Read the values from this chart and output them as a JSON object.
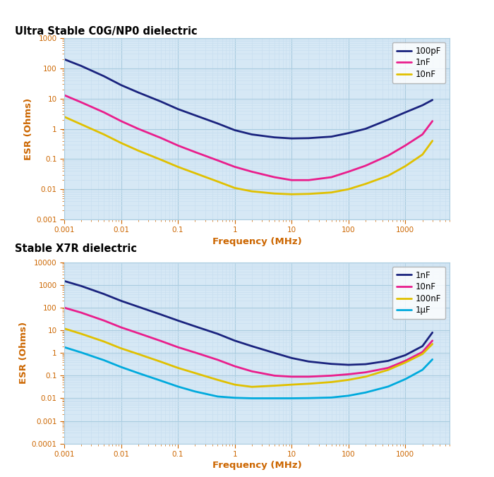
{
  "title1": "Ultra Stable C0G/NP0 dielectric",
  "title2": "Stable X7R dielectric",
  "xlabel": "Frequency (MHz)",
  "ylabel": "ESR (Ohms)",
  "plot_bg": "#d6e8f5",
  "title_color": "#000000",
  "axis_label_color": "#cc6600",
  "tick_color": "#cc6600",
  "grid_major_color": "#aacce0",
  "grid_minor_color": "#c8dff0",
  "c0g_colors": [
    "#1a237e",
    "#e91e8c",
    "#e0c000"
  ],
  "c0g_labels": [
    "100pF",
    "1nF",
    "10nF"
  ],
  "x7r_colors": [
    "#1a237e",
    "#e91e8c",
    "#e0c000",
    "#00aadd"
  ],
  "x7r_labels": [
    "1nF",
    "10nF",
    "100nF",
    "1μF"
  ],
  "freq_min": 0.001,
  "freq_max": 6000,
  "c0g_xdata": [
    0.001,
    0.002,
    0.005,
    0.01,
    0.02,
    0.05,
    0.1,
    0.2,
    0.5,
    1,
    2,
    5,
    10,
    20,
    50,
    100,
    200,
    500,
    1000,
    2000,
    3000
  ],
  "c0g_100pF": [
    200,
    120,
    55,
    28,
    16,
    8,
    4.5,
    2.8,
    1.5,
    0.9,
    0.65,
    0.52,
    0.48,
    0.49,
    0.55,
    0.72,
    1.0,
    2.0,
    3.5,
    6.0,
    9.0
  ],
  "c0g_1nF": [
    13,
    7.5,
    3.5,
    1.8,
    1.0,
    0.5,
    0.28,
    0.17,
    0.09,
    0.055,
    0.038,
    0.025,
    0.02,
    0.02,
    0.025,
    0.038,
    0.06,
    0.13,
    0.28,
    0.65,
    1.8
  ],
  "c0g_10nF": [
    2.5,
    1.4,
    0.65,
    0.34,
    0.19,
    0.095,
    0.055,
    0.034,
    0.018,
    0.011,
    0.0085,
    0.0072,
    0.0068,
    0.007,
    0.0078,
    0.01,
    0.015,
    0.028,
    0.058,
    0.14,
    0.4
  ],
  "x7r_xdata": [
    0.001,
    0.002,
    0.005,
    0.01,
    0.02,
    0.05,
    0.1,
    0.2,
    0.5,
    1,
    2,
    5,
    10,
    20,
    50,
    100,
    200,
    500,
    1000,
    2000,
    3000
  ],
  "x7r_1nF": [
    1500,
    900,
    400,
    200,
    110,
    50,
    27,
    15,
    7,
    3.5,
    2.0,
    1.0,
    0.6,
    0.42,
    0.33,
    0.3,
    0.32,
    0.45,
    0.8,
    2.0,
    8.0
  ],
  "x7r_10nF": [
    100,
    60,
    27,
    13.5,
    7.5,
    3.4,
    1.8,
    1.05,
    0.5,
    0.26,
    0.155,
    0.1,
    0.09,
    0.09,
    0.1,
    0.115,
    0.14,
    0.22,
    0.45,
    1.1,
    3.5
  ],
  "x7r_100nF": [
    12,
    7.0,
    3.2,
    1.6,
    0.9,
    0.41,
    0.22,
    0.13,
    0.065,
    0.04,
    0.032,
    0.036,
    0.04,
    0.044,
    0.052,
    0.065,
    0.09,
    0.18,
    0.38,
    0.9,
    2.5
  ],
  "x7r_1uF": [
    1.8,
    1.05,
    0.48,
    0.24,
    0.13,
    0.06,
    0.033,
    0.02,
    0.012,
    0.0105,
    0.01,
    0.01,
    0.01,
    0.0102,
    0.0108,
    0.013,
    0.018,
    0.033,
    0.07,
    0.18,
    0.52
  ]
}
